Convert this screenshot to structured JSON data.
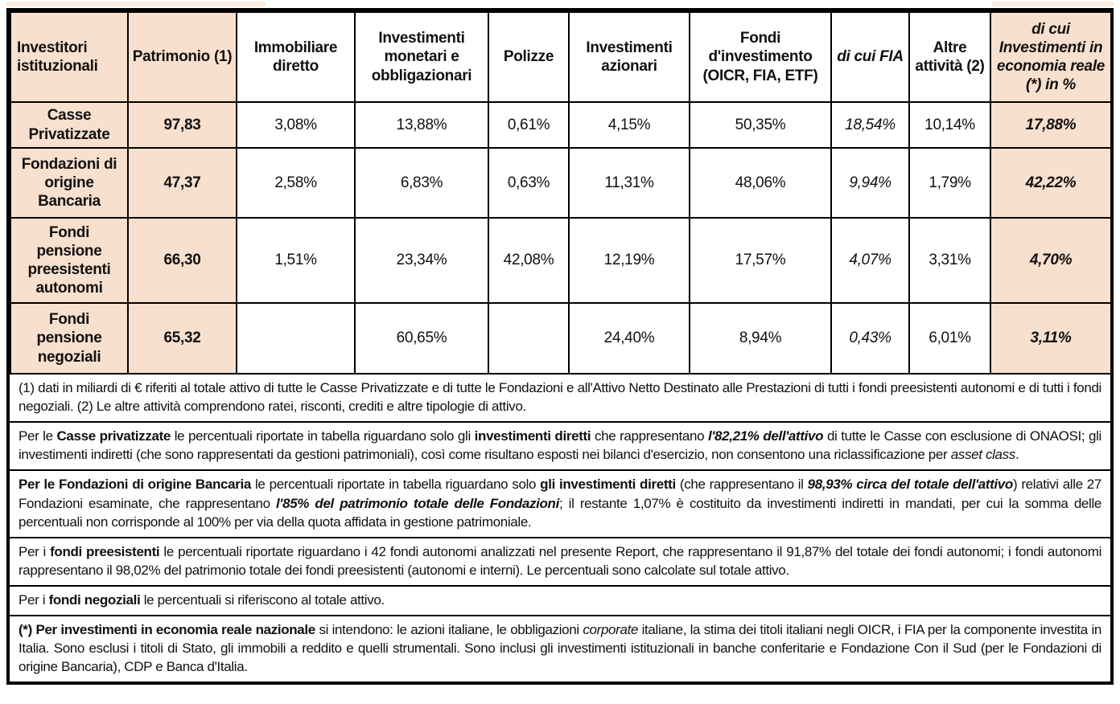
{
  "colors": {
    "highlight_peach": "#f8e0ce",
    "top_remnant_peach": "#fbecdd",
    "border_black": "#000000",
    "text": "#111111"
  },
  "table": {
    "headers": [
      {
        "label": "Investitori istituzionali"
      },
      {
        "label": "Patrimonio (1)"
      },
      {
        "label": "Immobiliare diretto"
      },
      {
        "label": "Investimenti monetari e obbligazionari"
      },
      {
        "label": "Polizze"
      },
      {
        "label": "Investimenti azionari"
      },
      {
        "label": "Fondi d'investimento (OICR, FIA, ETF)"
      },
      {
        "label": "di cui FIA"
      },
      {
        "label": "Altre attività (2)"
      },
      {
        "label": "di cui Investimenti in economia reale (*) in %"
      }
    ],
    "rows": [
      {
        "name": "Casse Privatizzate",
        "patrimonio": "97,83",
        "values": [
          "3,08%",
          "13,88%",
          "0,61%",
          "4,15%",
          "50,35%",
          "18,54%",
          "10,14%",
          "17,88%"
        ]
      },
      {
        "name": "Fondazioni di origine Bancaria",
        "patrimonio": "47,37",
        "values": [
          "2,58%",
          "6,83%",
          "0,63%",
          "11,31%",
          "48,06%",
          "9,94%",
          "1,79%",
          "42,22%"
        ]
      },
      {
        "name": "Fondi pensione preesistenti autonomi",
        "patrimonio": "66,30",
        "values": [
          "1,51%",
          "23,34%",
          "42,08%",
          "12,19%",
          "17,57%",
          "4,07%",
          "3,31%",
          "4,70%"
        ]
      },
      {
        "name": "Fondi pensione negoziali",
        "patrimonio": "65,32",
        "values": [
          "",
          "60,65%",
          "",
          "24,40%",
          "8,94%",
          "0,43%",
          "6,01%",
          "3,11%"
        ]
      }
    ]
  },
  "notes": [
    {
      "id": "footnote-definitions",
      "segments": [
        {
          "t": "(1) dati in miliardi di € riferiti al totale attivo di tutte le Casse Privatizzate e di tutte le Fondazioni e all'Attivo Netto Destinato alle Prestazioni di tutti i fondi preesistenti autonomi e di tutti i fondi negoziali. (2) Le altre attività comprendono ratei, risconti, crediti e altre tipologie di attivo."
        }
      ]
    },
    {
      "id": "note-casse-privatizzate",
      "segments": [
        {
          "t": "Per le "
        },
        {
          "t": "Casse privatizzate",
          "b": true
        },
        {
          "t": " le percentuali riportate in tabella riguardano solo gli "
        },
        {
          "t": "investimenti diretti",
          "b": true
        },
        {
          "t": " che rappresentano "
        },
        {
          "t": "l'82,21% dell'attivo",
          "b": true,
          "i": true
        },
        {
          "t": " di tutte le Casse con esclusione di ONAOSI; gli investimenti indiretti (che sono rappresentati da gestioni patrimoniali), così come risultano esposti nei bilanci d'esercizio, non consentono una riclassificazione per "
        },
        {
          "t": "asset class",
          "i": true
        },
        {
          "t": "."
        }
      ]
    },
    {
      "id": "note-fondazioni-bancarie",
      "segments": [
        {
          "t": "Per le Fondazioni di origine Bancaria",
          "b": true
        },
        {
          "t": " le percentuali riportate in tabella riguardano solo "
        },
        {
          "t": "gli investimenti diretti",
          "b": true
        },
        {
          "t": " (che rappresentano il "
        },
        {
          "t": "98,93% circa del totale dell'attivo",
          "b": true,
          "i": true
        },
        {
          "t": ") relativi alle 27 Fondazioni esaminate, che rappresentano "
        },
        {
          "t": "l'85% del patrimonio totale delle Fondazioni",
          "b": true,
          "i": true
        },
        {
          "t": "; il restante 1,07% è costituito da investimenti indiretti in mandati, per cui la somma delle percentuali non corrisponde al 100% per via della quota affidata in gestione patrimoniale."
        }
      ]
    },
    {
      "id": "note-fondi-preesistenti",
      "segments": [
        {
          "t": "Per i "
        },
        {
          "t": "fondi preesistenti",
          "b": true
        },
        {
          "t": " le percentuali riportate riguardano i 42 fondi autonomi analizzati nel presente Report, che rappresentano il 91,87% del totale dei fondi autonomi; i fondi autonomi rappresentano il 98,02% del patrimonio totale dei fondi preesistenti (autonomi e interni). Le percentuali sono calcolate sul totale attivo."
        }
      ]
    },
    {
      "id": "note-fondi-negoziali",
      "segments": [
        {
          "t": "Per i "
        },
        {
          "t": "fondi negoziali",
          "b": true
        },
        {
          "t": " le percentuali si riferiscono al totale attivo."
        }
      ]
    },
    {
      "id": "note-economia-reale",
      "segments": [
        {
          "t": "(*) Per investimenti in economia reale nazionale",
          "b": true
        },
        {
          "t": " si intendono: le azioni italiane, le obbligazioni "
        },
        {
          "t": "corporate",
          "i": true
        },
        {
          "t": " italiane, la stima dei titoli italiani negli OICR, i FIA per la componente investita in Italia. Sono esclusi i titoli di Stato, gli immobili a reddito e quelli strumentali. Sono inclusi gli investimenti istituzionali in banche conferitarie e Fondazione Con il Sud (per le Fondazioni di origine Bancaria), CDP e Banca d'Italia."
        }
      ]
    }
  ]
}
